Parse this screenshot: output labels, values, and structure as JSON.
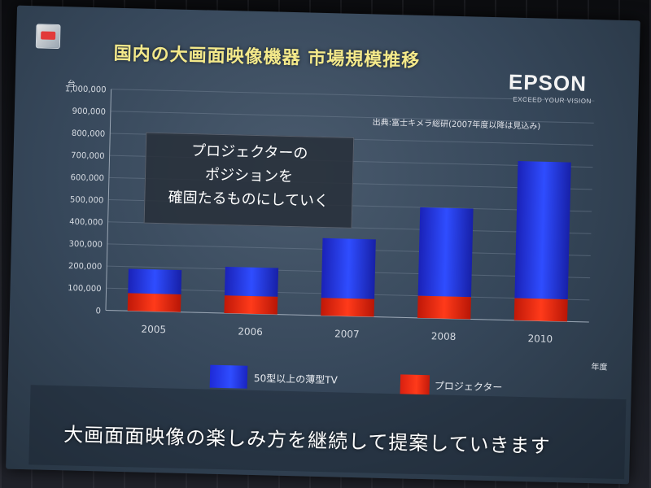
{
  "title": "国内の大画面映像機器 市場規模推移",
  "brand": {
    "name": "EPSON",
    "tagline": "EXCEED YOUR VISION"
  },
  "unit_label": "台",
  "source_note": "出典:富士キメラ総研(2007年度以降は見込み)",
  "callout": {
    "lines": [
      "プロジェクターの",
      "ポジションを",
      "確固たるものにしていく"
    ]
  },
  "footer_text": "大画面面映像の楽しみ方を継続して提案していきます",
  "colors": {
    "tv": "#2f4dff",
    "projector": "#ff3a1a",
    "title": "#f4e98a"
  },
  "chart_data": {
    "type": "bar",
    "stacked": true,
    "categories": [
      "2005",
      "2006",
      "2007",
      "2008",
      "2010"
    ],
    "xlabel": "年度",
    "ylabel": "台",
    "ylim": [
      0,
      1000000
    ],
    "yticks": [
      0,
      100000,
      200000,
      300000,
      400000,
      500000,
      600000,
      700000,
      800000,
      900000,
      1000000
    ],
    "ytick_labels": [
      "0",
      "100,000",
      "200,000",
      "300,000",
      "400,000",
      "500,000",
      "600,000",
      "700,000",
      "800,000",
      "900,000",
      "1,000,000"
    ],
    "legend_position": "bottom",
    "series": [
      {
        "name": "プロジェクター",
        "values": [
          80000,
          80000,
          80000,
          100000,
          100000
        ]
      },
      {
        "name": "50型以上の薄型TV",
        "values": [
          110000,
          130000,
          270000,
          400000,
          620000
        ]
      }
    ]
  }
}
